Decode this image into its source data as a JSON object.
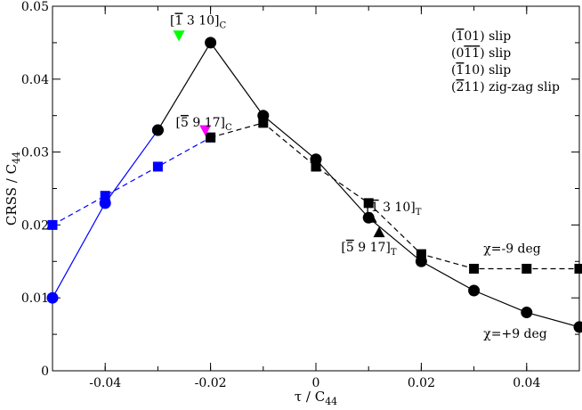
{
  "chart_data": {
    "type": "scatter",
    "title": "",
    "xlabel": {
      "main": "τ / C",
      "sub": "44"
    },
    "ylabel": {
      "main": "CRSS / C",
      "sub": "44"
    },
    "xlim": [
      -0.05,
      0.05
    ],
    "ylim": [
      0,
      0.05
    ],
    "grid": false,
    "xticks": [
      "-0.04",
      "-0.02",
      "0",
      "0.02",
      "0.04"
    ],
    "xtick_values": [
      -0.04,
      -0.02,
      0,
      0.02,
      0.04
    ],
    "yticks": [
      "0",
      "0.01",
      "0.02",
      "0.03",
      "0.04",
      "0.05"
    ],
    "ytick_values": [
      0,
      0.01,
      0.02,
      0.03,
      0.04,
      0.05
    ],
    "series": [
      {
        "id": "plus9-blue",
        "marker": "circle",
        "line": "solid",
        "color": "#0000ff",
        "x": [
          -0.05,
          -0.04,
          -0.03
        ],
        "y": [
          0.01,
          0.023,
          0.033
        ]
      },
      {
        "id": "plus9-black",
        "marker": "circle",
        "line": "solid",
        "color": "#000000",
        "x": [
          -0.03,
          -0.02,
          -0.01,
          0,
          0.01,
          0.02,
          0.03,
          0.04,
          0.05
        ],
        "y": [
          0.033,
          0.045,
          0.035,
          0.029,
          0.021,
          0.015,
          0.011,
          0.008,
          0.006
        ]
      },
      {
        "id": "minus9-blue",
        "marker": "square",
        "line": "dashed",
        "color": "#0000ff",
        "x": [
          -0.05,
          -0.04,
          -0.03,
          -0.02
        ],
        "y": [
          0.02,
          0.024,
          0.028,
          0.032
        ]
      },
      {
        "id": "minus9-black",
        "marker": "square",
        "line": "dashed",
        "color": "#000000",
        "x": [
          -0.02,
          -0.01,
          0,
          0.01,
          0.02,
          0.03,
          0.04,
          0.05
        ],
        "y": [
          0.032,
          0.034,
          0.028,
          0.023,
          0.016,
          0.014,
          0.014,
          0.014
        ]
      },
      {
        "id": "triangle-points",
        "line": "none",
        "points": [
          {
            "x": -0.026,
            "y": 0.046,
            "marker": "triangle-down",
            "color": "#00ff00"
          },
          {
            "x": -0.021,
            "y": 0.033,
            "marker": "triangle-down",
            "color": "#ff00ff"
          },
          {
            "x": 0.0105,
            "y": 0.021,
            "marker": "triangle-up",
            "color": "#000000"
          },
          {
            "x": 0.012,
            "y": 0.019,
            "marker": "triangle-up",
            "color": "#000000"
          }
        ]
      }
    ],
    "legend": {
      "placement": "top-right",
      "entries": [
        {
          "parts": [
            [
              "(",
              ""
            ],
            [
              "1",
              "over"
            ],
            [
              "01) slip",
              ""
            ]
          ],
          "color": "#000000"
        },
        {
          "parts": [
            [
              "(0",
              ""
            ],
            [
              "1",
              "over"
            ],
            [
              "1",
              "over"
            ],
            [
              ") slip",
              ""
            ]
          ],
          "color": "#0000ff"
        },
        {
          "parts": [
            [
              "(",
              ""
            ],
            [
              "1",
              "over"
            ],
            [
              "10) slip",
              ""
            ]
          ],
          "color": "#ff00ff"
        },
        {
          "parts": [
            [
              "(",
              ""
            ],
            [
              "2",
              "over"
            ],
            [
              "11) zig-zag slip",
              ""
            ]
          ],
          "color": "#00ff00"
        }
      ]
    },
    "annotations": [
      {
        "id": "annot-1-3-10-c",
        "color": "#00ff00",
        "x": -0.0277,
        "y": 0.0475,
        "parts": [
          [
            "[",
            ""
          ],
          [
            "1",
            "over"
          ],
          [
            " 3 10]",
            ""
          ],
          [
            "C",
            "sub"
          ]
        ]
      },
      {
        "id": "annot-5-9-17-c",
        "color": "#ff00ff",
        "x": -0.0266,
        "y": 0.0335,
        "parts": [
          [
            "[",
            ""
          ],
          [
            "5",
            "over"
          ],
          [
            " 9 17]",
            ""
          ],
          [
            "C",
            "sub"
          ]
        ]
      },
      {
        "id": "annot-1-3-10-t",
        "color": "#000000",
        "x": 0.0095,
        "y": 0.0219,
        "parts": [
          [
            "[",
            ""
          ],
          [
            "1",
            "over"
          ],
          [
            " 3 10]",
            ""
          ],
          [
            "T",
            "sub"
          ]
        ]
      },
      {
        "id": "annot-5-9-17-t",
        "color": "#000000",
        "x": 0.0048,
        "y": 0.0164,
        "parts": [
          [
            "[",
            ""
          ],
          [
            "5",
            "over"
          ],
          [
            " 9 17]",
            ""
          ],
          [
            "T",
            "sub"
          ]
        ]
      },
      {
        "id": "annot-chi-minus9",
        "color": "#000000",
        "x": 0.0318,
        "y": 0.0162,
        "parts": [
          [
            "χ=-9 deg",
            ""
          ]
        ]
      },
      {
        "id": "annot-chi-plus9",
        "color": "#000000",
        "x": 0.0318,
        "y": 0.0045,
        "parts": [
          [
            "χ=+9 deg",
            ""
          ]
        ]
      }
    ]
  }
}
